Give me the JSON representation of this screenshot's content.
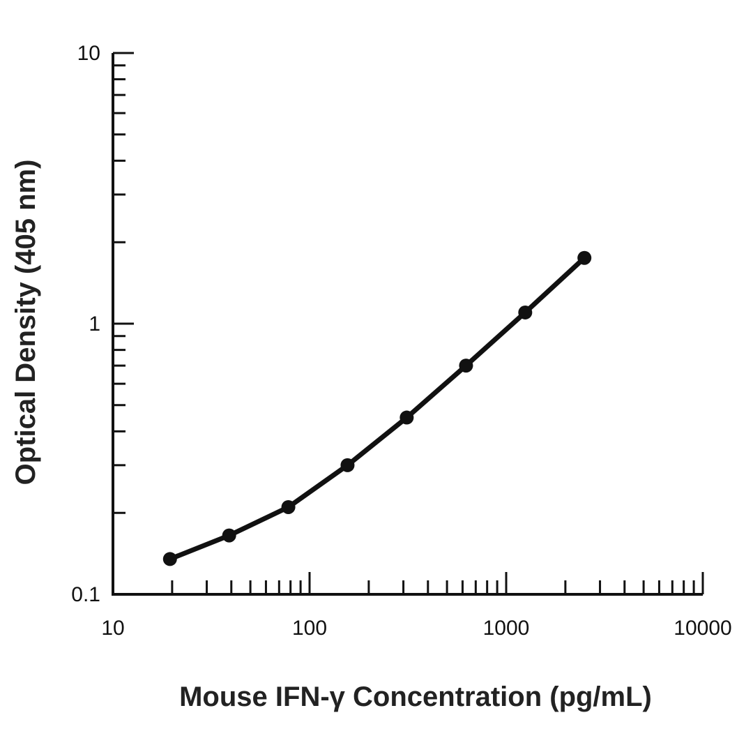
{
  "chart_data": {
    "type": "line",
    "title": "",
    "xlabel": "Mouse IFN-γ Concentration (pg/mL)",
    "ylabel": "Optical Density (405 nm)",
    "x_scale": "log",
    "y_scale": "log",
    "xlim": [
      10,
      10000
    ],
    "ylim": [
      0.1,
      10
    ],
    "x_ticks": [
      "10",
      "100",
      "1000",
      "10000"
    ],
    "y_ticks": [
      "0.1",
      "1",
      "10"
    ],
    "grid": false,
    "line_color": "#111111",
    "series": [
      {
        "x": [
          19.5,
          39,
          78,
          156,
          312,
          625,
          1250,
          2500
        ],
        "y": [
          0.135,
          0.165,
          0.21,
          0.3,
          0.45,
          0.7,
          1.1,
          1.75
        ]
      }
    ]
  }
}
